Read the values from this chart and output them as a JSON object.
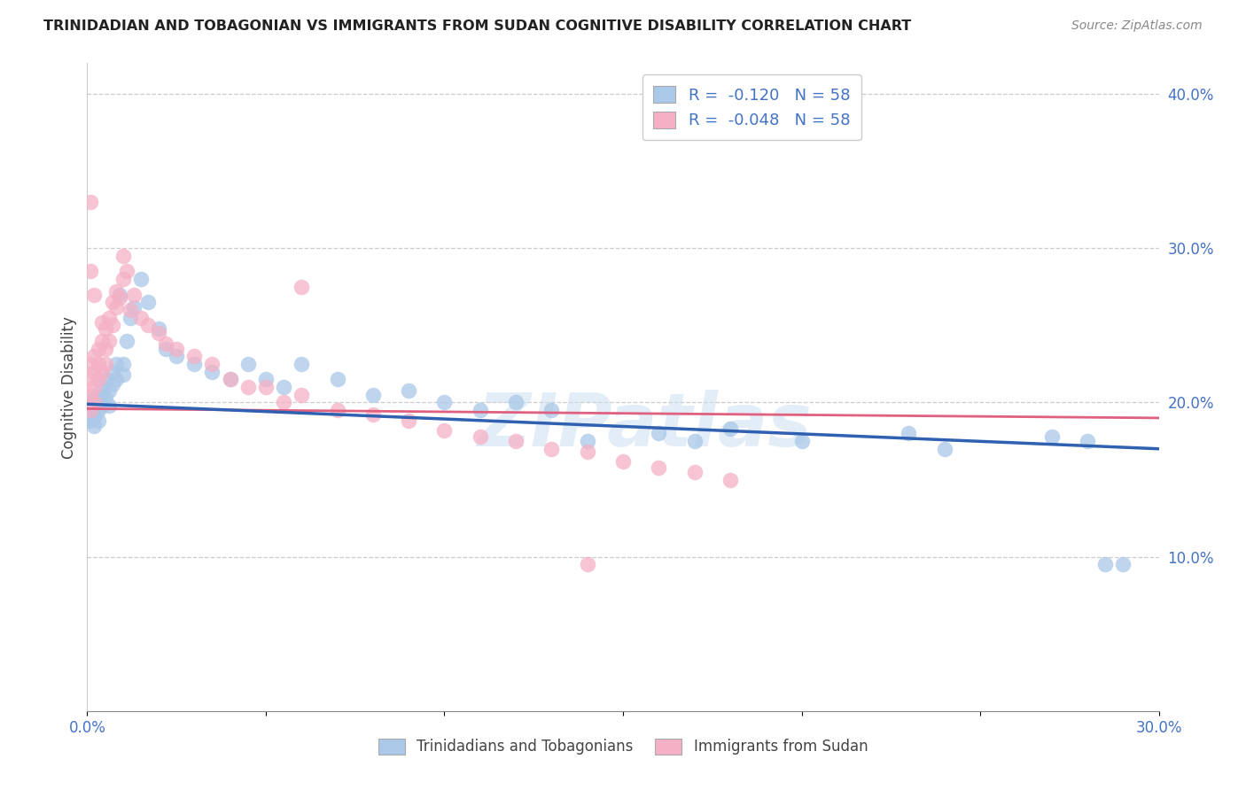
{
  "title": "TRINIDADIAN AND TOBAGONIAN VS IMMIGRANTS FROM SUDAN COGNITIVE DISABILITY CORRELATION CHART",
  "source": "Source: ZipAtlas.com",
  "ylabel": "Cognitive Disability",
  "xlim": [
    0.0,
    0.3
  ],
  "ylim": [
    0.0,
    0.42
  ],
  "R_blue": -0.12,
  "R_pink": -0.048,
  "N_blue": 58,
  "N_pink": 58,
  "blue_color": "#aac8e8",
  "pink_color": "#f5b0c5",
  "blue_line_color": "#3060b0",
  "pink_line_color": "#e06080",
  "legend_label_blue": "Trinidadians and Tobagonians",
  "legend_label_pink": "Immigrants from Sudan",
  "legend_R_color": "#4472c4",
  "watermark": "ZIPatlas",
  "blue_scatter_x": [
    0.001,
    0.001,
    0.001,
    0.001,
    0.002,
    0.002,
    0.002,
    0.002,
    0.003,
    0.003,
    0.003,
    0.004,
    0.004,
    0.004,
    0.005,
    0.005,
    0.006,
    0.006,
    0.007,
    0.007,
    0.008,
    0.008,
    0.009,
    0.01,
    0.01,
    0.011,
    0.012,
    0.013,
    0.015,
    0.017,
    0.02,
    0.022,
    0.025,
    0.03,
    0.035,
    0.04,
    0.045,
    0.05,
    0.055,
    0.06,
    0.07,
    0.08,
    0.09,
    0.1,
    0.11,
    0.12,
    0.13,
    0.14,
    0.16,
    0.17,
    0.18,
    0.2,
    0.23,
    0.24,
    0.27,
    0.28,
    0.285,
    0.29
  ],
  "blue_scatter_y": [
    0.195,
    0.2,
    0.188,
    0.192,
    0.197,
    0.203,
    0.19,
    0.185,
    0.2,
    0.195,
    0.188,
    0.205,
    0.198,
    0.21,
    0.203,
    0.215,
    0.198,
    0.208,
    0.22,
    0.212,
    0.215,
    0.225,
    0.27,
    0.218,
    0.225,
    0.24,
    0.255,
    0.262,
    0.28,
    0.265,
    0.248,
    0.235,
    0.23,
    0.225,
    0.22,
    0.215,
    0.225,
    0.215,
    0.21,
    0.225,
    0.215,
    0.205,
    0.208,
    0.2,
    0.195,
    0.2,
    0.195,
    0.175,
    0.18,
    0.175,
    0.183,
    0.175,
    0.18,
    0.17,
    0.178,
    0.175,
    0.095,
    0.095
  ],
  "pink_scatter_x": [
    0.001,
    0.001,
    0.001,
    0.001,
    0.001,
    0.002,
    0.002,
    0.002,
    0.002,
    0.003,
    0.003,
    0.003,
    0.004,
    0.004,
    0.004,
    0.005,
    0.005,
    0.005,
    0.006,
    0.006,
    0.007,
    0.007,
    0.008,
    0.008,
    0.009,
    0.01,
    0.01,
    0.011,
    0.012,
    0.013,
    0.015,
    0.017,
    0.02,
    0.022,
    0.025,
    0.03,
    0.035,
    0.04,
    0.045,
    0.05,
    0.055,
    0.06,
    0.07,
    0.08,
    0.09,
    0.1,
    0.11,
    0.12,
    0.13,
    0.14,
    0.15,
    0.16,
    0.17,
    0.18,
    0.001,
    0.002,
    0.06,
    0.14
  ],
  "pink_scatter_y": [
    0.195,
    0.205,
    0.215,
    0.225,
    0.33,
    0.2,
    0.21,
    0.22,
    0.23,
    0.215,
    0.225,
    0.235,
    0.22,
    0.24,
    0.252,
    0.225,
    0.235,
    0.248,
    0.24,
    0.255,
    0.25,
    0.265,
    0.262,
    0.272,
    0.268,
    0.28,
    0.295,
    0.285,
    0.26,
    0.27,
    0.255,
    0.25,
    0.245,
    0.238,
    0.235,
    0.23,
    0.225,
    0.215,
    0.21,
    0.21,
    0.2,
    0.205,
    0.195,
    0.192,
    0.188,
    0.182,
    0.178,
    0.175,
    0.17,
    0.168,
    0.162,
    0.158,
    0.155,
    0.15,
    0.285,
    0.27,
    0.275,
    0.095
  ]
}
